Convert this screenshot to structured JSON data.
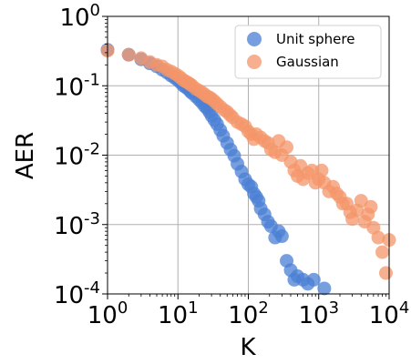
{
  "chart_data": {
    "type": "scatter",
    "xlabel": "K",
    "ylabel": "AER",
    "xscale": "log",
    "yscale": "log",
    "xlim": [
      1,
      10000
    ],
    "ylim": [
      0.0001,
      1
    ],
    "x_ticks": [
      {
        "base": "10",
        "exp": "0"
      },
      {
        "base": "10",
        "exp": "1"
      },
      {
        "base": "10",
        "exp": "2"
      },
      {
        "base": "10",
        "exp": "3"
      },
      {
        "base": "10",
        "exp": "4"
      }
    ],
    "y_ticks": [
      {
        "base": "10",
        "exp": "-4"
      },
      {
        "base": "10",
        "exp": "-3"
      },
      {
        "base": "10",
        "exp": "-2"
      },
      {
        "base": "10",
        "exp": "-1"
      },
      {
        "base": "10",
        "exp": "0"
      }
    ],
    "grid": true,
    "legend_position": "top-right",
    "series": [
      {
        "name": "Unit sphere",
        "color": "#4a7fd4",
        "x": [
          1,
          2,
          3,
          4,
          5,
          6,
          7,
          8,
          9,
          10,
          11,
          12,
          13,
          14,
          15,
          16,
          18,
          20,
          22,
          24,
          26,
          28,
          30,
          33,
          36,
          40,
          44,
          50,
          56,
          63,
          70,
          80,
          90,
          100,
          110,
          120,
          130,
          140,
          150,
          170,
          190,
          210,
          240,
          270,
          300,
          350,
          400,
          450,
          500,
          600,
          700,
          850,
          1200
        ],
        "y": [
          0.33,
          0.28,
          0.24,
          0.21,
          0.19,
          0.17,
          0.155,
          0.14,
          0.13,
          0.12,
          0.11,
          0.1,
          0.095,
          0.09,
          0.083,
          0.078,
          0.07,
          0.063,
          0.057,
          0.051,
          0.047,
          0.042,
          0.037,
          0.032,
          0.028,
          0.023,
          0.019,
          0.015,
          0.012,
          0.0098,
          0.0075,
          0.0058,
          0.0045,
          0.0038,
          0.0035,
          0.0028,
          0.0025,
          0.0022,
          0.0017,
          0.0014,
          0.0011,
          0.00095,
          0.00065,
          0.0008,
          0.00068,
          0.0003,
          0.00022,
          0.00016,
          0.00018,
          0.00016,
          0.00014,
          0.00016,
          0.00012
        ]
      },
      {
        "name": "Gaussian",
        "color": "#f4956a",
        "x": [
          1,
          2,
          3,
          4,
          5,
          6,
          7,
          8,
          9,
          10,
          11,
          12,
          13,
          14,
          15,
          16,
          18,
          20,
          22,
          24,
          26,
          28,
          30,
          33,
          36,
          40,
          45,
          50,
          55,
          60,
          70,
          80,
          90,
          100,
          110,
          120,
          130,
          150,
          170,
          190,
          210,
          240,
          270,
          300,
          350,
          400,
          450,
          500,
          550,
          600,
          700,
          800,
          900,
          1000,
          1100,
          1200,
          1400,
          1600,
          1800,
          2000,
          2200,
          2500,
          2800,
          3000,
          3500,
          4000,
          4500,
          5000,
          5500,
          6000,
          7000,
          8000,
          9000,
          10000
        ],
        "y": [
          0.32,
          0.28,
          0.25,
          0.22,
          0.2,
          0.19,
          0.17,
          0.16,
          0.15,
          0.14,
          0.13,
          0.12,
          0.115,
          0.11,
          0.105,
          0.1,
          0.09,
          0.085,
          0.08,
          0.075,
          0.07,
          0.068,
          0.065,
          0.06,
          0.055,
          0.05,
          0.045,
          0.042,
          0.038,
          0.035,
          0.03,
          0.028,
          0.026,
          0.022,
          0.02,
          0.017,
          0.02,
          0.018,
          0.016,
          0.015,
          0.012,
          0.011,
          0.016,
          0.01,
          0.013,
          0.008,
          0.006,
          0.005,
          0.007,
          0.0045,
          0.0055,
          0.006,
          0.004,
          0.0045,
          0.006,
          0.004,
          0.003,
          0.0035,
          0.0028,
          0.0025,
          0.002,
          0.002,
          0.0015,
          0.0012,
          0.0016,
          0.0022,
          0.0011,
          0.0014,
          0.0018,
          0.0009,
          0.00065,
          0.0004,
          0.0002,
          0.0006
        ]
      }
    ]
  }
}
